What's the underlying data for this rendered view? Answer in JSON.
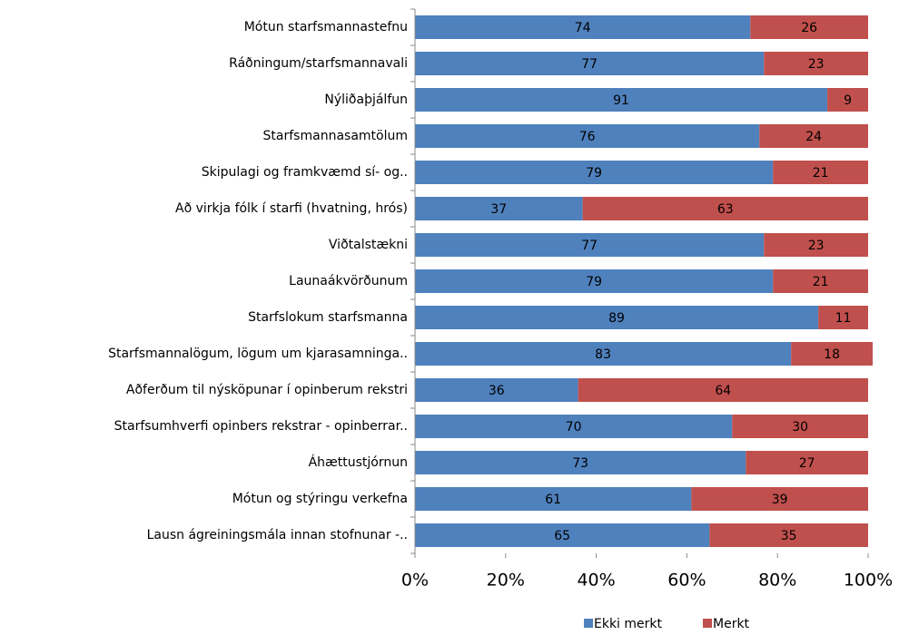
{
  "chart_data": {
    "type": "bar",
    "orientation": "horizontal",
    "stacked": true,
    "categories": [
      "Mótun starfsmannastefnu",
      "Ráðningum/starfsmannavali",
      "Nýliðaþjálfun",
      "Starfsmannasamtölum",
      "Skipulagi og framkvæmd sí- og..",
      "Að virkja fólk í starfi (hvatning, hrós)",
      "Viðtalstækni",
      "Launaákvörðunum",
      "Starfslokum starfsmanna",
      "Starfsmannalögum, lögum um kjarasamninga..",
      "Aðferðum til nýsköpunar í opinberum rekstri",
      "Starfsumhverfi opinbers rekstrar - opinberrar..",
      "Áhættustjórnun",
      "Mótun og stýringu verkefna",
      "Lausn ágreiningsmála innan stofnunar -.."
    ],
    "series": [
      {
        "name": "Ekki merkt",
        "color": "#4f81bd",
        "values": [
          74,
          77,
          91,
          76,
          79,
          37,
          77,
          79,
          89,
          83,
          36,
          70,
          73,
          61,
          65
        ]
      },
      {
        "name": "Merkt",
        "color": "#c0504d",
        "values": [
          26,
          23,
          9,
          24,
          21,
          63,
          23,
          21,
          11,
          18,
          64,
          30,
          27,
          39,
          35
        ]
      }
    ],
    "xlim": [
      0,
      100
    ],
    "xticks": [
      {
        "value": 0,
        "label": "0%"
      },
      {
        "value": 20,
        "label": "20%"
      },
      {
        "value": 40,
        "label": "40%"
      },
      {
        "value": 60,
        "label": "60%"
      },
      {
        "value": 80,
        "label": "80%"
      },
      {
        "value": 100,
        "label": "100%"
      }
    ],
    "legend": "bottom"
  }
}
